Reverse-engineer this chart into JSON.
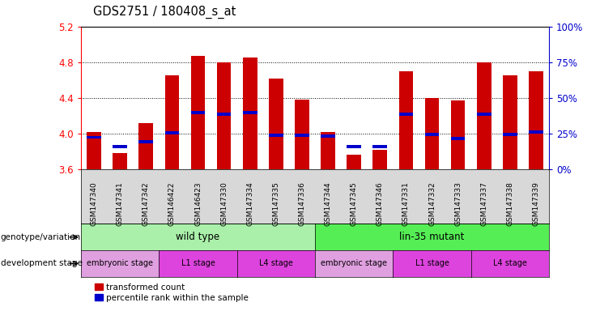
{
  "title": "GDS2751 / 180408_s_at",
  "samples": [
    "GSM147340",
    "GSM147341",
    "GSM147342",
    "GSM146422",
    "GSM146423",
    "GSM147330",
    "GSM147334",
    "GSM147335",
    "GSM147336",
    "GSM147344",
    "GSM147345",
    "GSM147346",
    "GSM147331",
    "GSM147332",
    "GSM147333",
    "GSM147337",
    "GSM147338",
    "GSM147339"
  ],
  "bar_heights": [
    4.02,
    3.78,
    4.12,
    4.65,
    4.87,
    4.8,
    4.85,
    4.62,
    4.38,
    4.02,
    3.77,
    3.82,
    4.7,
    4.4,
    4.37,
    4.8,
    4.65,
    4.7
  ],
  "blue_markers": [
    3.96,
    3.86,
    3.91,
    4.01,
    4.24,
    4.22,
    4.24,
    3.98,
    3.98,
    3.97,
    3.86,
    3.86,
    4.22,
    3.99,
    3.95,
    4.22,
    3.99,
    4.02
  ],
  "bar_color": "#cc0000",
  "blue_color": "#0000cc",
  "ylim_min": 3.6,
  "ylim_max": 5.2,
  "yticks_left": [
    3.6,
    4.0,
    4.4,
    4.8,
    5.2
  ],
  "yticks_right_vals": [
    0,
    25,
    50,
    75,
    100
  ],
  "right_axis_color": "#0000cc",
  "genotype_variation_label": "genotype/variation",
  "development_stage_label": "development stage",
  "wild_type_color": "#aaf0aa",
  "lin35_color": "#55ee55",
  "dev_stage_colors": [
    "#e0a0e0",
    "#dd44dd",
    "#dd44dd",
    "#e0a0e0",
    "#dd44dd",
    "#dd44dd"
  ],
  "groups": [
    {
      "label": "wild type",
      "start": 0,
      "end": 9,
      "color": "#aaf0aa"
    },
    {
      "label": "lin-35 mutant",
      "start": 9,
      "end": 18,
      "color": "#55ee55"
    }
  ],
  "dev_stages": [
    {
      "label": "embryonic stage",
      "start": 0,
      "end": 3
    },
    {
      "label": "L1 stage",
      "start": 3,
      "end": 6
    },
    {
      "label": "L4 stage",
      "start": 6,
      "end": 9
    },
    {
      "label": "embryonic stage",
      "start": 9,
      "end": 12
    },
    {
      "label": "L1 stage",
      "start": 12,
      "end": 15
    },
    {
      "label": "L4 stage",
      "start": 15,
      "end": 18
    }
  ],
  "legend_items": [
    {
      "color": "#cc0000",
      "label": "transformed count"
    },
    {
      "color": "#0000cc",
      "label": "percentile rank within the sample"
    }
  ],
  "bar_width": 0.55,
  "background_color": "#ffffff",
  "tick_label_bg": "#d8d8d8"
}
